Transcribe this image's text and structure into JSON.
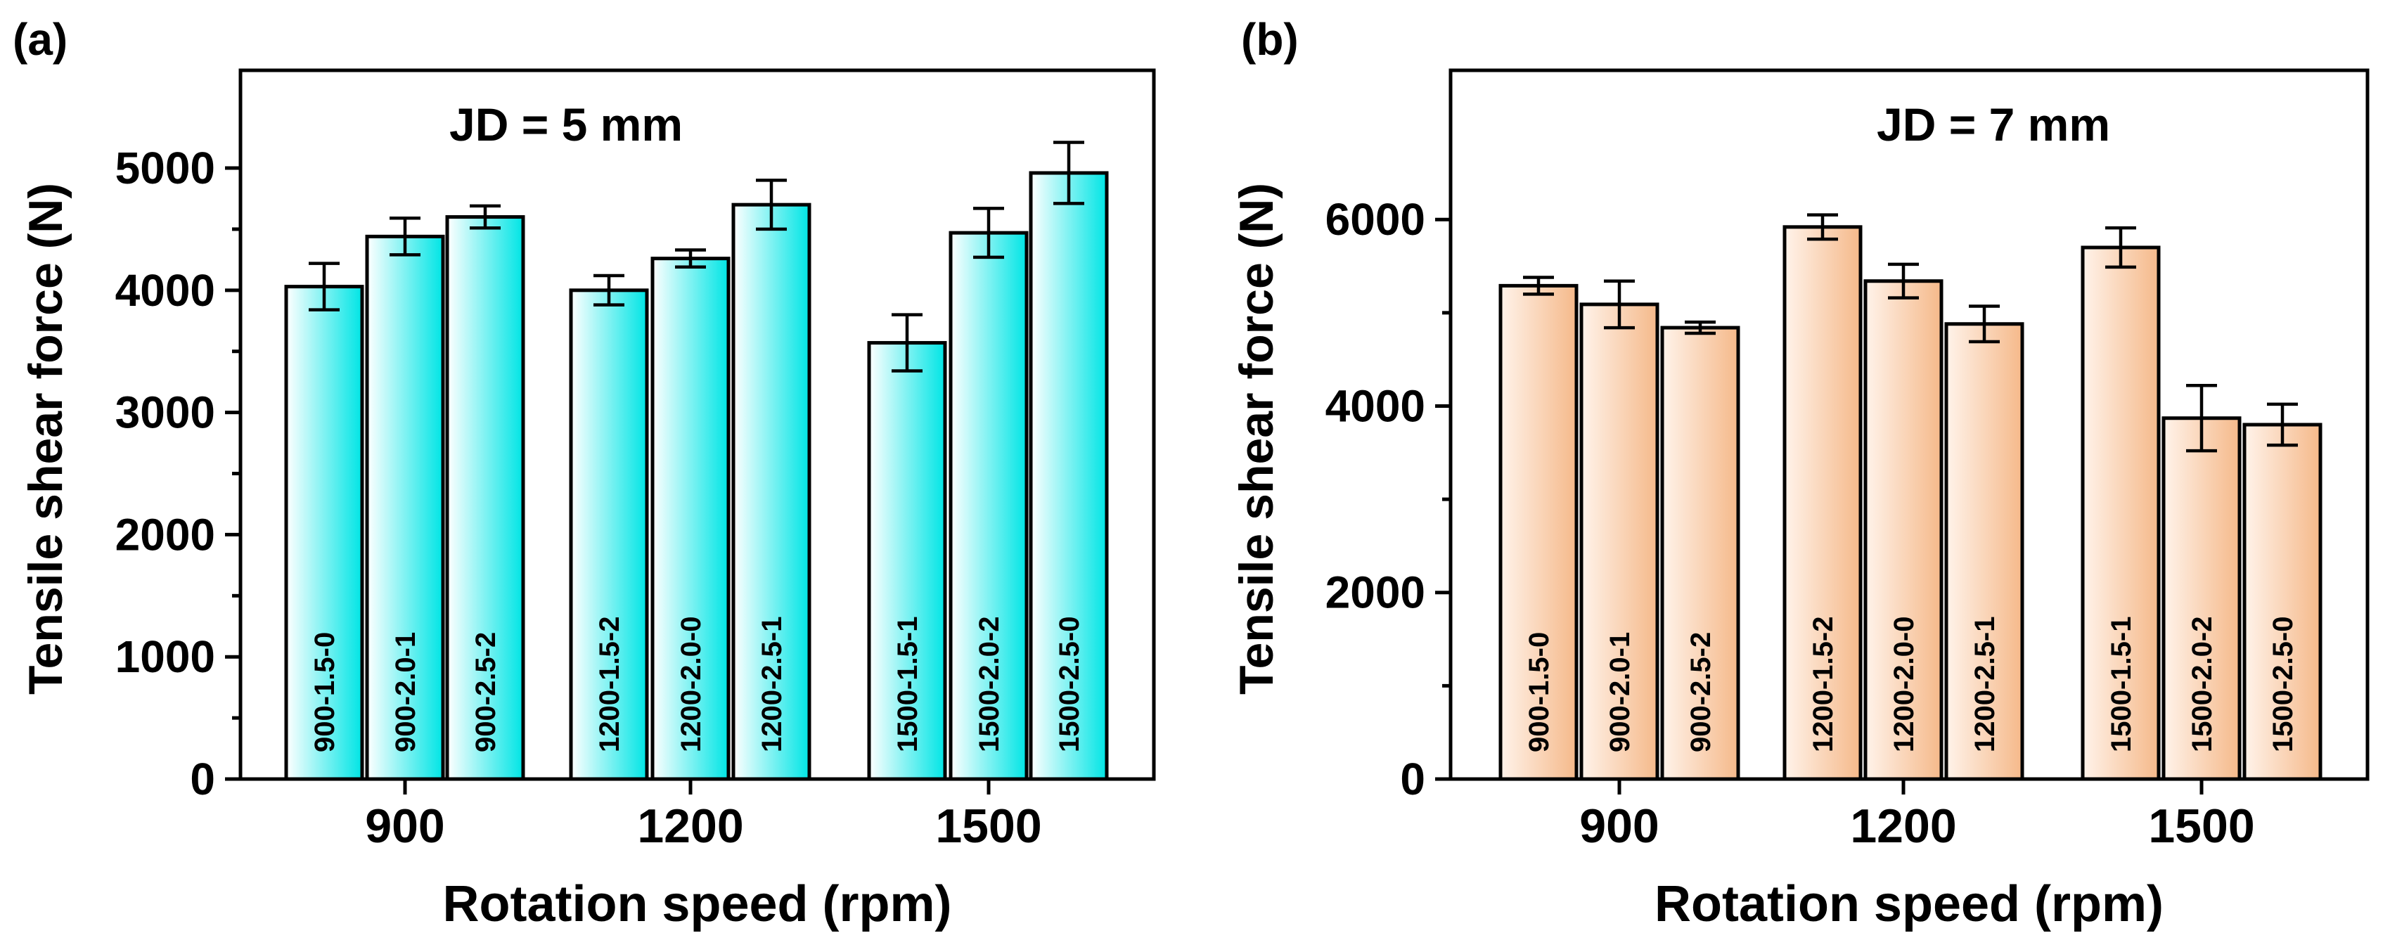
{
  "chart_data": [
    {
      "type": "bar",
      "panel_label": "(a)",
      "annotation": "JD = 5 mm",
      "xlabel": "Rotation speed (rpm)",
      "ylabel": "Tensile shear force (N)",
      "ylim": [
        0,
        5800
      ],
      "yticks": [
        0,
        1000,
        2000,
        3000,
        4000,
        5000
      ],
      "yticklabels": [
        "0",
        "1000",
        "2000",
        "3000",
        "4000",
        "5000"
      ],
      "categories": [
        "900",
        "1200",
        "1500"
      ],
      "bar_color": "#00e5e5",
      "bars": [
        {
          "group": "900",
          "label": "900-1.5-0",
          "value": 4030,
          "error": 190
        },
        {
          "group": "900",
          "label": "900-2.0-1",
          "value": 4440,
          "error": 150
        },
        {
          "group": "900",
          "label": "900-2.5-2",
          "value": 4600,
          "error": 90
        },
        {
          "group": "1200",
          "label": "1200-1.5-2",
          "value": 4000,
          "error": 120
        },
        {
          "group": "1200",
          "label": "1200-2.0-0",
          "value": 4260,
          "error": 70
        },
        {
          "group": "1200",
          "label": "1200-2.5-1",
          "value": 4700,
          "error": 200
        },
        {
          "group": "1500",
          "label": "1500-1.5-1",
          "value": 3570,
          "error": 230
        },
        {
          "group": "1500",
          "label": "1500-2.0-2",
          "value": 4470,
          "error": 200
        },
        {
          "group": "1500",
          "label": "1500-2.5-0",
          "value": 4960,
          "error": 250
        }
      ]
    },
    {
      "type": "bar",
      "panel_label": "(b)",
      "annotation": "JD = 7 mm",
      "xlabel": "Rotation speed (rpm)",
      "ylabel": "Tensile shear force (N)",
      "ylim": [
        0,
        7600
      ],
      "yticks": [
        0,
        2000,
        4000,
        6000
      ],
      "yticklabels": [
        "0",
        "2000",
        "4000",
        "6000"
      ],
      "categories": [
        "900",
        "1200",
        "1500"
      ],
      "bar_color": "#f5b98a",
      "bars": [
        {
          "group": "900",
          "label": "900-1.5-0",
          "value": 5290,
          "error": 90
        },
        {
          "group": "900",
          "label": "900-2.0-1",
          "value": 5090,
          "error": 250
        },
        {
          "group": "900",
          "label": "900-2.5-2",
          "value": 4840,
          "error": 60
        },
        {
          "group": "1200",
          "label": "1200-1.5-2",
          "value": 5920,
          "error": 130
        },
        {
          "group": "1200",
          "label": "1200-2.0-0",
          "value": 5340,
          "error": 180
        },
        {
          "group": "1200",
          "label": "1200-2.5-1",
          "value": 4880,
          "error": 190
        },
        {
          "group": "1500",
          "label": "1500-1.5-1",
          "value": 5700,
          "error": 210
        },
        {
          "group": "1500",
          "label": "1500-2.0-2",
          "value": 3870,
          "error": 350
        },
        {
          "group": "1500",
          "label": "1500-2.5-0",
          "value": 3800,
          "error": 220
        }
      ]
    }
  ]
}
